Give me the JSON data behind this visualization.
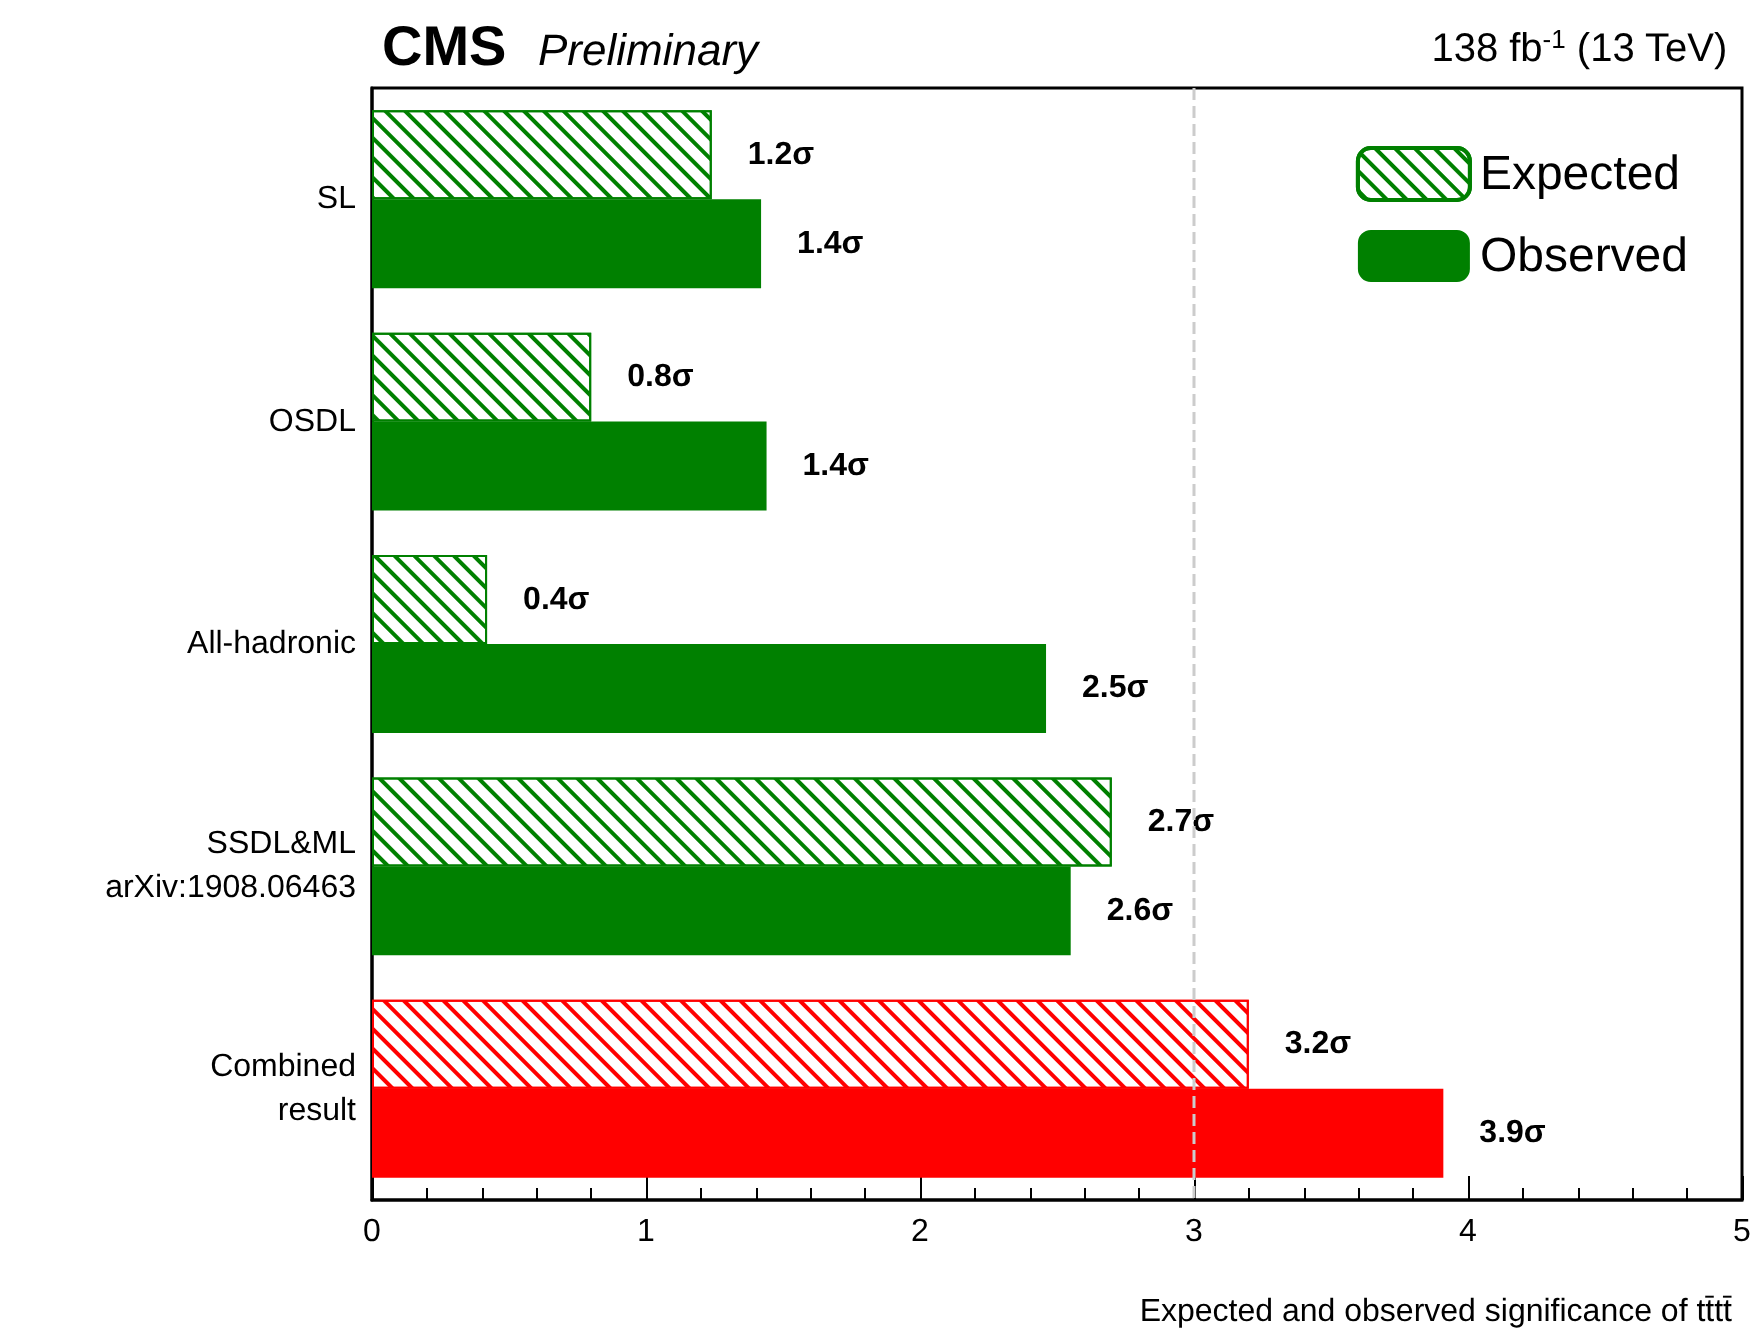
{
  "chart_data": {
    "type": "bar",
    "orientation": "horizontal",
    "title": "CMS",
    "subtitle": "Preliminary",
    "annotations": [
      "138 fb$^{-1}$ (13 TeV)"
    ],
    "xlabel": "Expected and observed significance of tt̄tt̄",
    "categories": [
      "SL",
      "OSDL",
      "All-hadronic",
      "SSDL&ML\narXiv:1908.06463",
      "Combined\nresult"
    ],
    "series": [
      {
        "name": "Expected",
        "color": "#008000",
        "colors": [
          "#008000",
          "#008000",
          "#008000",
          "#008000",
          "#ff0000"
        ],
        "values": [
          1.24,
          0.8,
          0.42,
          2.7,
          3.2
        ],
        "value_labels": [
          "1.2σ",
          "0.8σ",
          "0.4σ",
          "2.7σ",
          "3.2σ"
        ]
      },
      {
        "name": "Observed",
        "color": "#008000",
        "colors": [
          "#008000",
          "#008000",
          "#008000",
          "#008000",
          "#ff0000"
        ],
        "values": [
          1.42,
          1.44,
          2.46,
          2.55,
          3.91
        ],
        "value_labels": [
          "1.4σ",
          "1.4σ",
          "2.5σ",
          "2.6σ",
          "3.9σ"
        ]
      }
    ],
    "xlim": [
      0,
      5
    ],
    "xticks": [
      0,
      1,
      2,
      3,
      4,
      5
    ],
    "ref_lines": [
      {
        "axis": "x",
        "value": 3,
        "color": "#cccccc",
        "line_style": "dashed"
      }
    ],
    "grid": false,
    "legend": "top right"
  }
}
